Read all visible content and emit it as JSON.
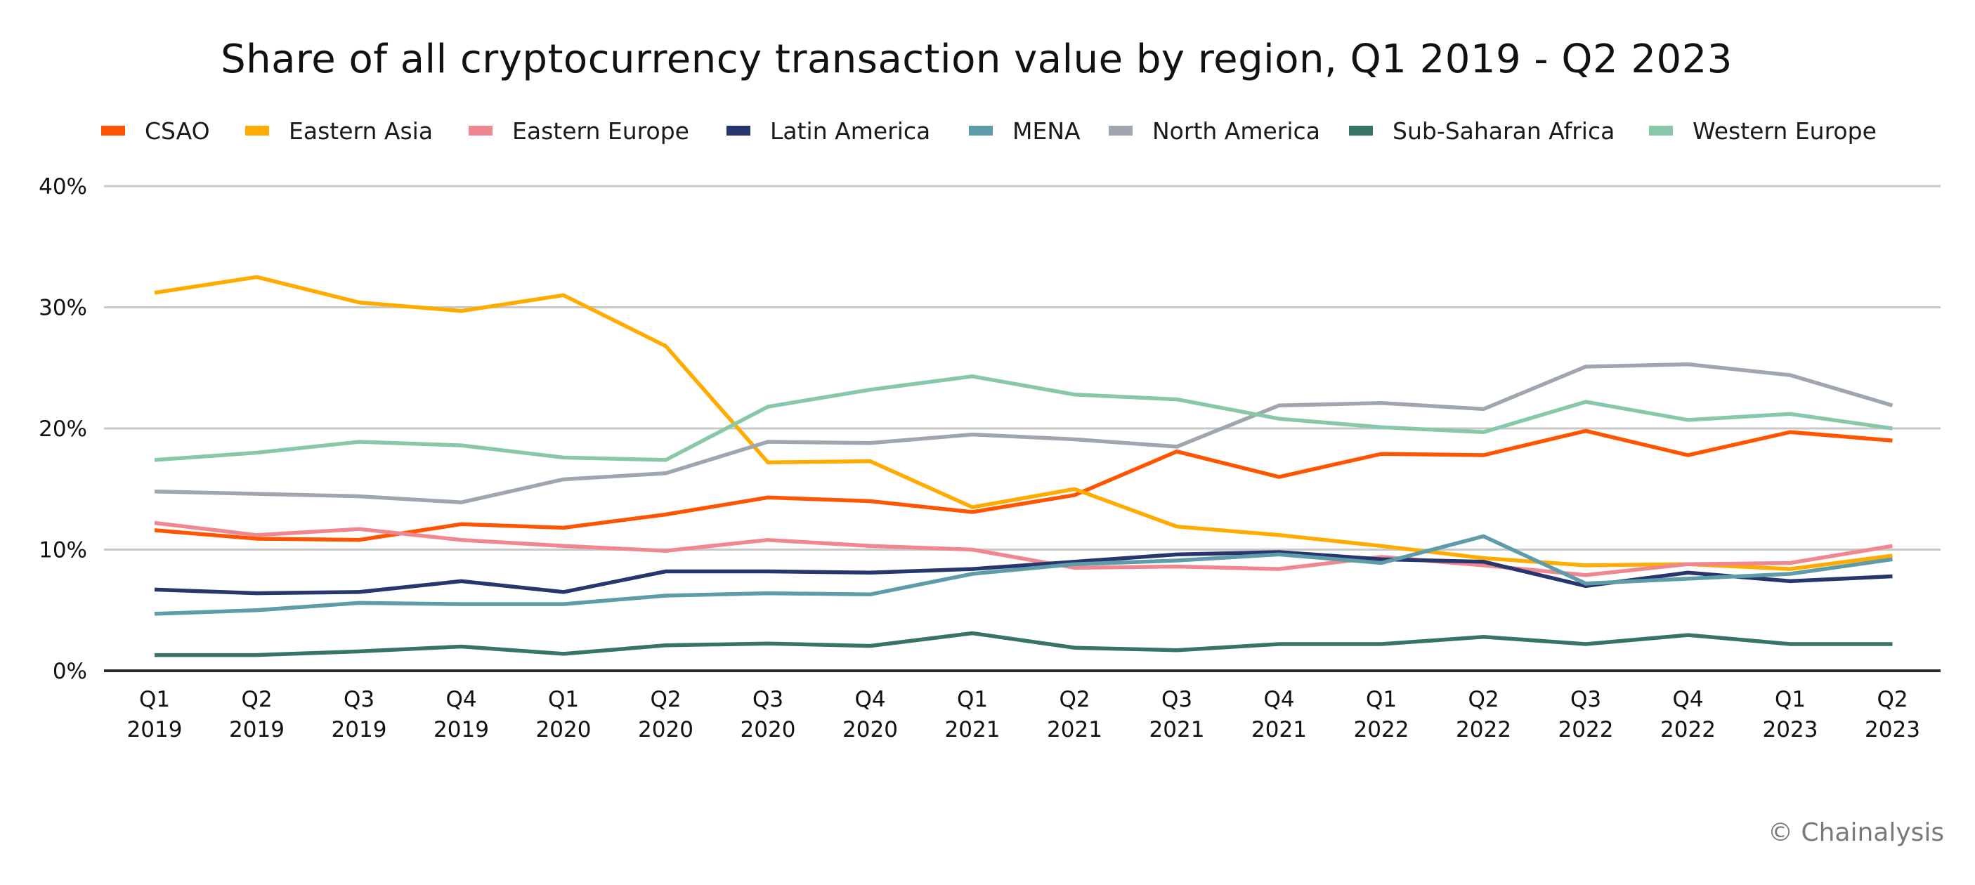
{
  "chart_data": {
    "type": "line",
    "title": "Share of all cryptocurrency transaction value by region, Q1 2019 - Q2 2023",
    "xlabel": "",
    "ylabel": "",
    "ylim": [
      0,
      40
    ],
    "yticks": [
      0,
      10,
      20,
      30,
      40
    ],
    "ytick_labels": [
      "0%",
      "10%",
      "20%",
      "30%",
      "40%"
    ],
    "grid": true,
    "legend_position": "top",
    "categories": [
      [
        "Q1",
        "2019"
      ],
      [
        "Q2",
        "2019"
      ],
      [
        "Q3",
        "2019"
      ],
      [
        "Q4",
        "2019"
      ],
      [
        "Q1",
        "2020"
      ],
      [
        "Q2",
        "2020"
      ],
      [
        "Q3",
        "2020"
      ],
      [
        "Q4",
        "2020"
      ],
      [
        "Q1",
        "2021"
      ],
      [
        "Q2",
        "2021"
      ],
      [
        "Q3",
        "2021"
      ],
      [
        "Q4",
        "2021"
      ],
      [
        "Q1",
        "2022"
      ],
      [
        "Q2",
        "2022"
      ],
      [
        "Q3",
        "2022"
      ],
      [
        "Q4",
        "2022"
      ],
      [
        "Q1",
        "2023"
      ],
      [
        "Q2",
        "2023"
      ]
    ],
    "series": [
      {
        "name": "CSAO",
        "color": "#ff5500",
        "values": [
          11.6,
          10.9,
          10.8,
          12.1,
          11.8,
          12.9,
          14.3,
          14.0,
          13.1,
          14.5,
          18.1,
          16.0,
          17.9,
          17.8,
          19.8,
          17.8,
          19.7,
          19.0
        ]
      },
      {
        "name": "Eastern Asia",
        "color": "#ffab00",
        "values": [
          31.2,
          32.5,
          30.4,
          29.7,
          31.0,
          26.8,
          17.2,
          17.3,
          13.5,
          15.0,
          11.9,
          11.2,
          10.3,
          9.3,
          8.7,
          8.8,
          8.4,
          9.5
        ]
      },
      {
        "name": "Eastern Europe",
        "color": "#f0868f",
        "values": [
          12.2,
          11.2,
          11.7,
          10.8,
          10.3,
          9.9,
          10.8,
          10.3,
          10.0,
          8.5,
          8.6,
          8.4,
          9.4,
          8.7,
          7.9,
          8.8,
          8.9,
          10.3
        ]
      },
      {
        "name": "Latin America",
        "color": "#27366e",
        "values": [
          6.7,
          6.4,
          6.5,
          7.4,
          6.5,
          8.2,
          8.2,
          8.1,
          8.4,
          9.0,
          9.6,
          9.8,
          9.2,
          9.0,
          7.0,
          8.1,
          7.4,
          7.8
        ]
      },
      {
        "name": "MENA",
        "color": "#5d9ca8",
        "values": [
          4.7,
          5.0,
          5.6,
          5.5,
          5.5,
          6.2,
          6.4,
          6.3,
          8.0,
          8.8,
          9.1,
          9.6,
          8.9,
          11.1,
          7.2,
          7.6,
          8.0,
          9.2
        ]
      },
      {
        "name": "North America",
        "color": "#a0a6b0",
        "values": [
          14.8,
          14.6,
          14.4,
          13.9,
          15.8,
          16.3,
          18.9,
          18.8,
          19.5,
          19.1,
          18.5,
          21.9,
          22.1,
          21.6,
          25.1,
          25.3,
          24.4,
          21.9
        ]
      },
      {
        "name": "Sub-Saharan Africa",
        "color": "#357466",
        "values": [
          1.3,
          1.3,
          1.6,
          2.0,
          1.4,
          2.1,
          2.25,
          2.05,
          3.1,
          1.9,
          1.7,
          2.2,
          2.2,
          2.8,
          2.2,
          2.95,
          2.2,
          2.2
        ]
      },
      {
        "name": "Western Europe",
        "color": "#86c8a8",
        "values": [
          17.4,
          18.0,
          18.9,
          18.6,
          17.6,
          17.4,
          21.8,
          23.2,
          24.3,
          22.8,
          22.4,
          20.8,
          20.1,
          19.7,
          22.2,
          20.7,
          21.2,
          20.0
        ]
      }
    ],
    "gridline_color": "#c8c8c8",
    "axis_color": "#2a2a2a"
  },
  "copyright": "© Chainalysis"
}
